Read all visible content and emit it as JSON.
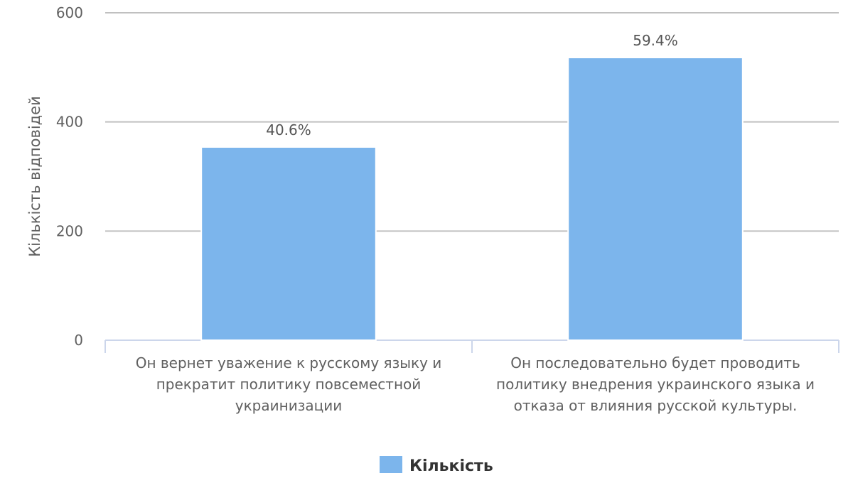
{
  "chart_data": {
    "type": "bar",
    "ylabel": "Кількість відповідей",
    "ylim": [
      0,
      600
    ],
    "yticks": [
      0,
      200,
      400,
      600
    ],
    "grid": true,
    "legend_position": "bottom",
    "categories": [
      [
        "Он вернет уважение к русскому языку и",
        "прекратит политику повсеместной",
        "украинизации"
      ],
      [
        "Он последовательно будет проводить",
        "политику внедрения украинского языка и",
        "отказа от влияния русской культуры."
      ]
    ],
    "series": [
      {
        "name": "Кількість",
        "color": "#7cb5ec",
        "values": [
          354,
          518
        ],
        "data_labels": [
          "40.6%",
          "59.4%"
        ]
      }
    ]
  }
}
